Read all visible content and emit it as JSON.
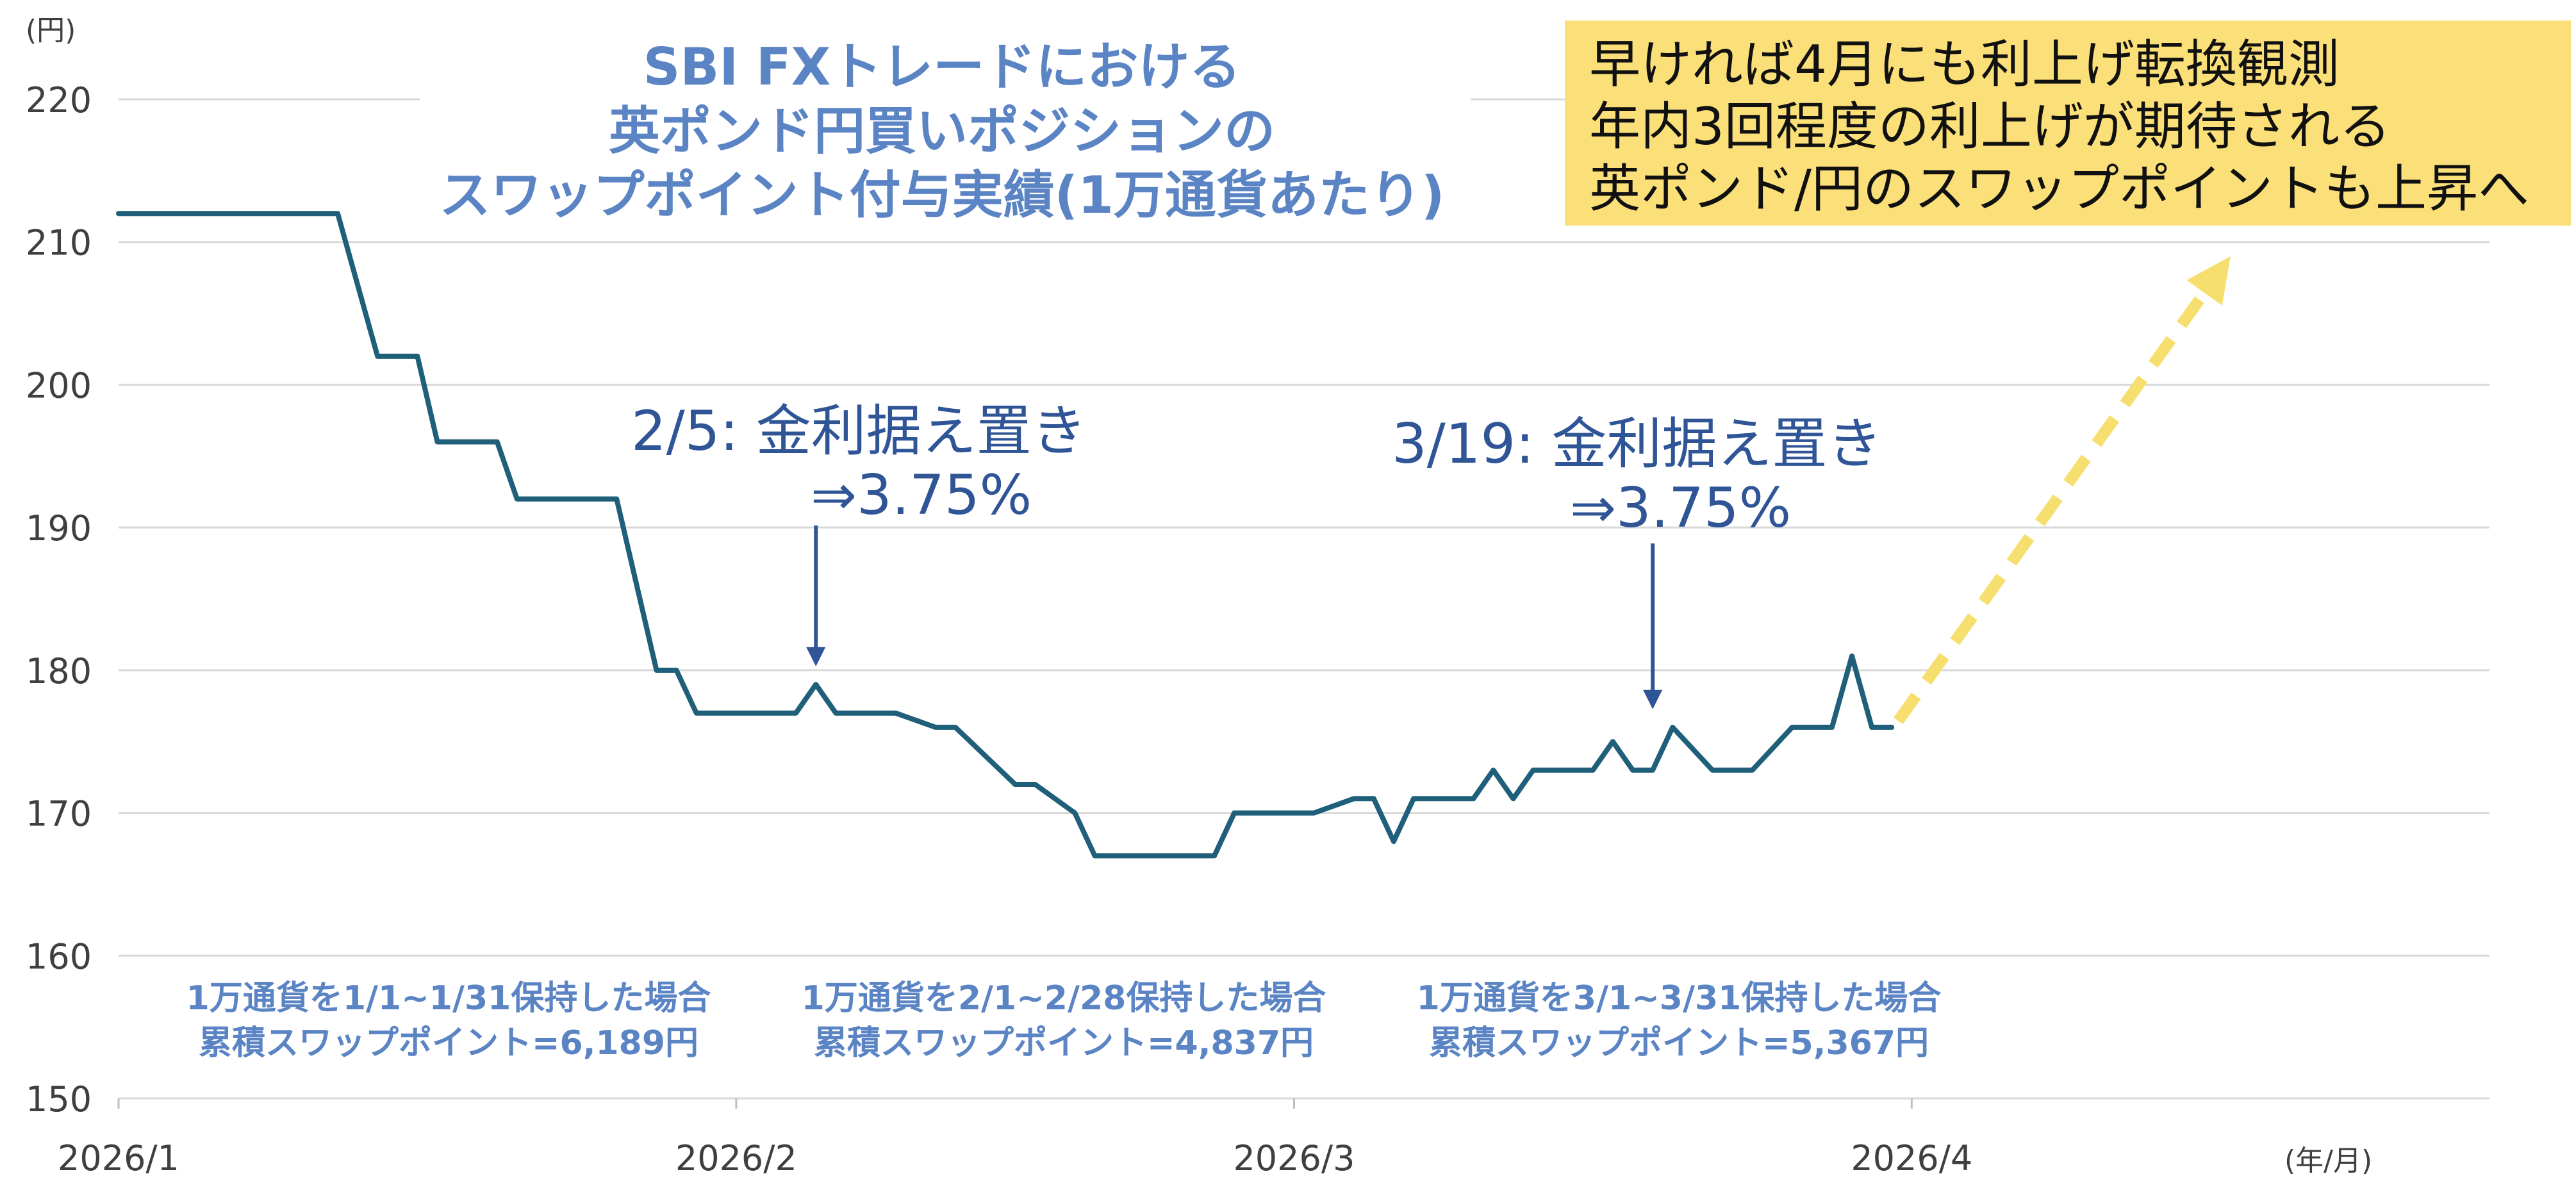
{
  "chart_data": {
    "type": "line",
    "title": [
      "SBI FXトレードにおける",
      "英ポンド円買いポジションの",
      "スワップポイント付与実績(1万通貨あたり)"
    ],
    "y_unit": "(円)",
    "x_unit": "(年/月)",
    "ylim": [
      150,
      220
    ],
    "yticks": [
      "150",
      "160",
      "170",
      "180",
      "190",
      "200",
      "210",
      "220"
    ],
    "xlim": [
      "2026-01-01",
      "2026-04-30"
    ],
    "xticks": [
      {
        "date": "2026-01-01",
        "label": "2026/1"
      },
      {
        "date": "2026-02-01",
        "label": "2026/2"
      },
      {
        "date": "2026-03-01",
        "label": "2026/3"
      },
      {
        "date": "2026-04-01",
        "label": "2026/4"
      }
    ],
    "grid": true,
    "series": [
      {
        "color": "#1f5f7a",
        "x": [
          "2026-01-01",
          "2026-01-12",
          "2026-01-14",
          "2026-01-16",
          "2026-01-17",
          "2026-01-20",
          "2026-01-21",
          "2026-01-26",
          "2026-01-28",
          "2026-01-29",
          "2026-01-30",
          "2026-02-01",
          "2026-02-04",
          "2026-02-05",
          "2026-02-06",
          "2026-02-09",
          "2026-02-11",
          "2026-02-12",
          "2026-02-15",
          "2026-02-16",
          "2026-02-18",
          "2026-02-19",
          "2026-02-20",
          "2026-02-25",
          "2026-02-26",
          "2026-03-02",
          "2026-03-04",
          "2026-03-05",
          "2026-03-06",
          "2026-03-07",
          "2026-03-10",
          "2026-03-11",
          "2026-03-12",
          "2026-03-13",
          "2026-03-16",
          "2026-03-17",
          "2026-03-18",
          "2026-03-19",
          "2026-03-20",
          "2026-03-22",
          "2026-03-24",
          "2026-03-26",
          "2026-03-28",
          "2026-03-29"
        ],
        "values": [
          212,
          212,
          202,
          202,
          196,
          196,
          192,
          192,
          180,
          180,
          177,
          177,
          177,
          179,
          177,
          177,
          176,
          176,
          172,
          172,
          170,
          167,
          167,
          167,
          170,
          170,
          171,
          171,
          168,
          171,
          171,
          173,
          171,
          173,
          173,
          175,
          173,
          173,
          176,
          173,
          173,
          176,
          176,
          181
        ]
      }
    ],
    "series_tail": {
      "x": [
        "2026-03-29",
        "2026-03-30",
        "2026-03-31"
      ],
      "values": [
        181,
        176,
        176
      ]
    },
    "forecast_arrow": {
      "from": {
        "date": "2026-03-31",
        "value": 176
      },
      "to": {
        "date": "2026-04-17",
        "value": 209
      },
      "color": "#f6df6e"
    },
    "annotations": [
      {
        "date": "2026-02-05",
        "lines": [
          "2/5: 金利据え置き",
          "⇒3.75%"
        ],
        "value": 180
      },
      {
        "date": "2026-03-19",
        "lines": [
          "3/19: 金利据え置き",
          "⇒3.75%"
        ],
        "value": 177
      }
    ],
    "period_notes": [
      {
        "lines": [
          "1万通貨を1/1~1/31保持した場合",
          "累積スワップポイント=6,189円"
        ]
      },
      {
        "lines": [
          "1万通貨を2/1~2/28保持した場合",
          "累積スワップポイント=4,837円"
        ]
      },
      {
        "lines": [
          "1万通貨を3/1~3/31保持した場合",
          "累積スワップポイント=5,367円"
        ]
      }
    ],
    "callout": {
      "lines": [
        "早ければ4月にも利上げ転換観測",
        "年内3回程度の利上げが期待される",
        "英ポンド/円のスワップポイントも上昇へ"
      ],
      "background": "#fbe079"
    }
  }
}
